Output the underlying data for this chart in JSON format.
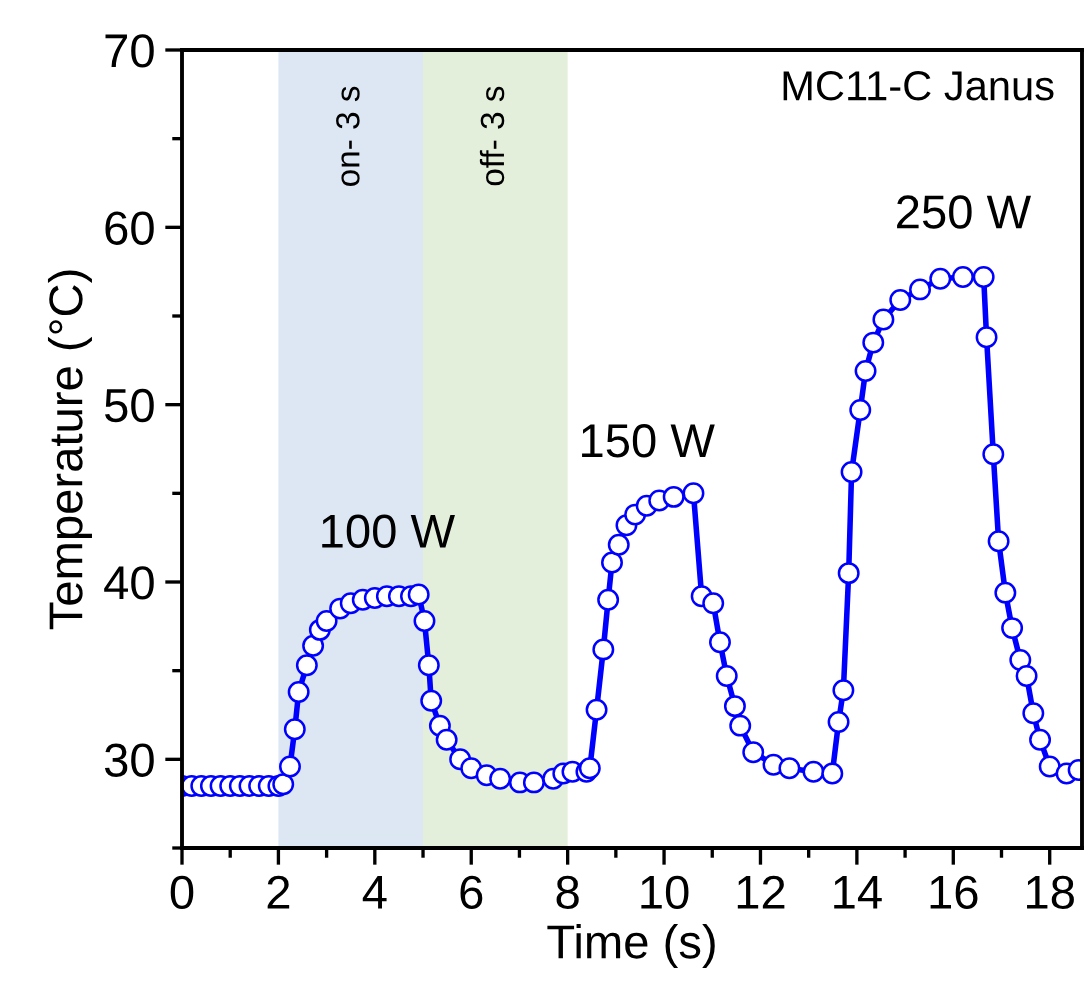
{
  "chart_data": {
    "type": "line",
    "xlabel": "Time (s)",
    "ylabel": "Temperature (°C)",
    "xlim": [
      0,
      18.67
    ],
    "ylim": [
      25,
      70
    ],
    "xticks": [
      0,
      2,
      4,
      6,
      8,
      10,
      12,
      14,
      16,
      18
    ],
    "yticks": [
      30,
      40,
      50,
      60,
      70
    ],
    "marker": "circle",
    "line_style": "solid",
    "grid": false,
    "legend": false,
    "series": [
      {
        "color": "#0000ff",
        "x": [
          0.0,
          0.2,
          0.4,
          0.6,
          0.8,
          1.0,
          1.2,
          1.4,
          1.6,
          1.8,
          2.0,
          2.1,
          2.24,
          2.34,
          2.42,
          2.59,
          2.72,
          2.86,
          3.0,
          3.28,
          3.5,
          3.75,
          4.0,
          4.25,
          4.5,
          4.75,
          4.91,
          5.03,
          5.12,
          5.17,
          5.35,
          5.49,
          5.77,
          6.0,
          6.32,
          6.6,
          7.01,
          7.3,
          7.7,
          7.91,
          8.1,
          8.39,
          8.46,
          8.6,
          8.74,
          8.84,
          8.92,
          9.06,
          9.22,
          9.4,
          9.64,
          9.9,
          10.2,
          10.61,
          10.78,
          11.02,
          11.16,
          11.3,
          11.47,
          11.58,
          11.85,
          12.27,
          12.6,
          13.1,
          13.49,
          13.62,
          13.72,
          13.83,
          13.89,
          14.07,
          14.18,
          14.34,
          14.55,
          14.9,
          15.31,
          15.73,
          16.2,
          16.63,
          16.69,
          16.83,
          16.94,
          17.08,
          17.22,
          17.39,
          17.52,
          17.66,
          17.8,
          18.0,
          18.35,
          18.6
        ],
        "values": [
          28.5,
          28.5,
          28.5,
          28.5,
          28.5,
          28.5,
          28.5,
          28.5,
          28.5,
          28.5,
          28.5,
          28.6,
          29.6,
          31.7,
          33.8,
          35.3,
          36.4,
          37.3,
          37.8,
          38.5,
          38.8,
          39.0,
          39.1,
          39.2,
          39.2,
          39.2,
          39.3,
          37.8,
          35.3,
          33.3,
          31.9,
          31.1,
          30.0,
          29.5,
          29.1,
          28.9,
          28.7,
          28.7,
          28.9,
          29.2,
          29.3,
          29.3,
          29.5,
          32.8,
          36.2,
          39.0,
          41.1,
          42.1,
          43.2,
          43.8,
          44.3,
          44.6,
          44.8,
          45.0,
          39.2,
          38.8,
          36.6,
          34.7,
          33.0,
          31.9,
          30.4,
          29.7,
          29.5,
          29.3,
          29.2,
          32.1,
          33.9,
          40.5,
          46.2,
          49.7,
          51.9,
          53.5,
          54.8,
          55.9,
          56.5,
          57.1,
          57.2,
          57.2,
          53.8,
          47.2,
          42.3,
          39.4,
          37.4,
          35.6,
          34.7,
          32.6,
          31.1,
          29.6,
          29.2,
          29.4
        ]
      }
    ],
    "bands": [
      {
        "axis": "x",
        "from": 2,
        "to": 5,
        "label": "on- 3 s",
        "color": "#dce7f3"
      },
      {
        "axis": "x",
        "from": 5,
        "to": 8,
        "label": "off- 3 s",
        "color": "#e3efda"
      }
    ],
    "annotations": [
      {
        "text": "100 W",
        "x": 4.25,
        "y": 39.2
      },
      {
        "text": "150 W",
        "x": 9.64,
        "y": 44.3
      },
      {
        "text": "250 W",
        "x": 16.2,
        "y": 57.2
      },
      "MC11-C Janus"
    ]
  }
}
